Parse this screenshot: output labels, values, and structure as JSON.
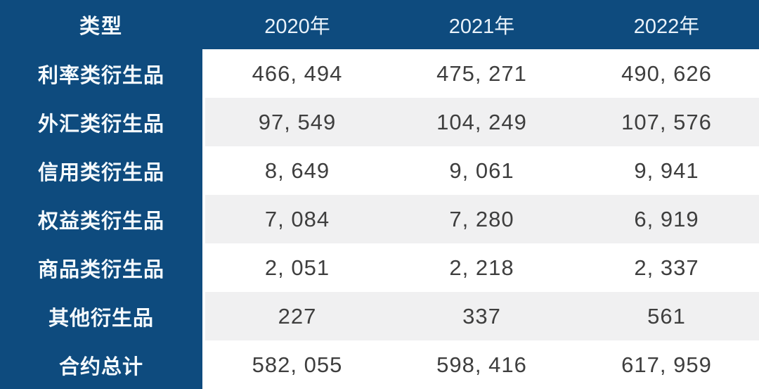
{
  "table": {
    "header": {
      "type_label": "类型",
      "years": [
        "2020年",
        "2021年",
        "2022年"
      ]
    },
    "rows": [
      {
        "label": "利率类衍生品",
        "values": [
          "466, 494",
          "475, 271",
          "490, 626"
        ]
      },
      {
        "label": "外汇类衍生品",
        "values": [
          "97, 549",
          "104, 249",
          "107, 576"
        ]
      },
      {
        "label": "信用类衍生品",
        "values": [
          "8, 649",
          "9, 061",
          "9, 941"
        ]
      },
      {
        "label": "权益类衍生品",
        "values": [
          "7, 084",
          "7, 280",
          "6, 919"
        ]
      },
      {
        "label": "商品类衍生品",
        "values": [
          "2, 051",
          "2, 218",
          "2, 337"
        ]
      },
      {
        "label": "其他衍生品",
        "values": [
          "227",
          "337",
          "561"
        ]
      },
      {
        "label": "合约总计",
        "values": [
          "582, 055",
          "598, 416",
          "617, 959"
        ]
      }
    ]
  },
  "colors": {
    "header_bg": "#0e4b7e",
    "label_column_bg": "#0e4b7e",
    "row_bg": "#ffffff",
    "row_alt_bg": "#f0f0f1",
    "header_text": "#f5fafd",
    "value_text": "#3e3e3e"
  },
  "chart_data": {
    "type": "table",
    "title": "",
    "columns": [
      "类型",
      "2020年",
      "2021年",
      "2022年"
    ],
    "categories": [
      "2020年",
      "2021年",
      "2022年"
    ],
    "series": [
      {
        "name": "利率类衍生品",
        "values": [
          466494,
          475271,
          490626
        ]
      },
      {
        "name": "外汇类衍生品",
        "values": [
          97549,
          104249,
          107576
        ]
      },
      {
        "name": "信用类衍生品",
        "values": [
          8649,
          9061,
          9941
        ]
      },
      {
        "name": "权益类衍生品",
        "values": [
          7084,
          7280,
          6919
        ]
      },
      {
        "name": "商品类衍生品",
        "values": [
          2051,
          2218,
          2337
        ]
      },
      {
        "name": "其他衍生品",
        "values": [
          227,
          337,
          561
        ]
      },
      {
        "name": "合约总计",
        "values": [
          582055,
          598416,
          617959
        ]
      }
    ]
  }
}
